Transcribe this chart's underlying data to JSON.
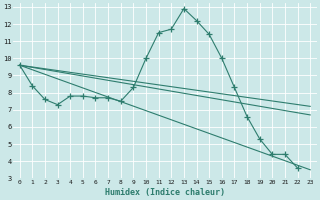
{
  "title": "",
  "xlabel": "Humidex (Indice chaleur)",
  "background_color": "#cce8e8",
  "grid_color": "#ffffff",
  "line_color": "#2e7d6e",
  "xlim": [
    -0.5,
    23.5
  ],
  "ylim": [
    3,
    13.2
  ],
  "xticks": [
    0,
    1,
    2,
    3,
    4,
    5,
    6,
    7,
    8,
    9,
    10,
    11,
    12,
    13,
    14,
    15,
    16,
    17,
    18,
    19,
    20,
    21,
    22,
    23
  ],
  "yticks": [
    3,
    4,
    5,
    6,
    7,
    8,
    9,
    10,
    11,
    12,
    13
  ],
  "main_x": [
    0,
    1,
    2,
    3,
    4,
    5,
    6,
    7,
    8,
    9,
    10,
    11,
    12,
    13,
    14,
    15,
    16,
    17,
    18,
    19,
    20,
    21,
    22
  ],
  "main_y": [
    9.6,
    8.4,
    7.6,
    7.3,
    7.8,
    7.8,
    7.7,
    7.7,
    7.5,
    8.3,
    10.0,
    11.5,
    11.7,
    12.9,
    12.2,
    11.4,
    10.0,
    8.3,
    6.6,
    5.3,
    4.4,
    4.4,
    3.6
  ],
  "line2_x": [
    0,
    23
  ],
  "line2_y": [
    9.6,
    3.5
  ],
  "line3_x": [
    0,
    23
  ],
  "line3_y": [
    9.6,
    6.7
  ],
  "line4_x": [
    0,
    23
  ],
  "line4_y": [
    9.6,
    7.2
  ]
}
